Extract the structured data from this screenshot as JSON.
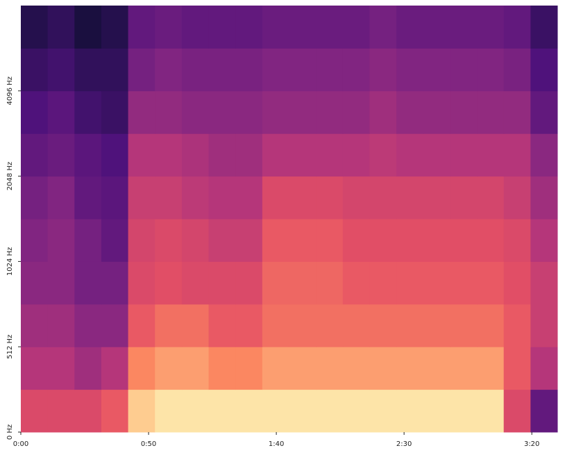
{
  "chart_data": {
    "type": "heatmap",
    "colormap": "magma",
    "yscale": "symlog",
    "linthresh": 512,
    "xlim": [
      0,
      210
    ],
    "ylim": [
      0,
      8192
    ],
    "xticks": [
      {
        "value": 0,
        "label": "0:00"
      },
      {
        "value": 50,
        "label": "0:50"
      },
      {
        "value": 100,
        "label": "1:40"
      },
      {
        "value": 150,
        "label": "2:30"
      },
      {
        "value": 200,
        "label": "3:20"
      }
    ],
    "yticks": [
      {
        "value": 0,
        "label": "0 Hz"
      },
      {
        "value": 512,
        "label": "512 Hz"
      },
      {
        "value": 1024,
        "label": "1024 Hz"
      },
      {
        "value": 2048,
        "label": "2048 Hz"
      },
      {
        "value": 4096,
        "label": "4096 Hz"
      }
    ],
    "x_bins": [
      0,
      10.5,
      21,
      31.5,
      42,
      52.5,
      63,
      73.5,
      84,
      94.5,
      105,
      115.5,
      126,
      136.5,
      147,
      157.5,
      168,
      178.5,
      189,
      199.5,
      210
    ],
    "y_bins": [
      0,
      256,
      512,
      724,
      1024,
      1448,
      2048,
      2896,
      4096,
      5793,
      8192
    ],
    "z": [
      [
        0.6,
        0.6,
        0.6,
        0.65,
        0.9,
        0.95,
        0.95,
        0.95,
        0.95,
        0.95,
        0.95,
        0.95,
        0.95,
        0.95,
        0.95,
        0.95,
        0.95,
        0.95,
        0.6,
        0.3
      ],
      [
        0.5,
        0.5,
        0.45,
        0.5,
        0.75,
        0.8,
        0.8,
        0.75,
        0.75,
        0.8,
        0.8,
        0.8,
        0.8,
        0.8,
        0.8,
        0.8,
        0.8,
        0.8,
        0.65,
        0.5
      ],
      [
        0.45,
        0.45,
        0.4,
        0.4,
        0.65,
        0.7,
        0.7,
        0.65,
        0.65,
        0.7,
        0.7,
        0.7,
        0.7,
        0.7,
        0.7,
        0.7,
        0.7,
        0.7,
        0.65,
        0.55
      ],
      [
        0.4,
        0.4,
        0.35,
        0.35,
        0.6,
        0.62,
        0.6,
        0.6,
        0.6,
        0.68,
        0.68,
        0.68,
        0.65,
        0.65,
        0.65,
        0.65,
        0.65,
        0.65,
        0.62,
        0.55
      ],
      [
        0.38,
        0.4,
        0.35,
        0.3,
        0.58,
        0.6,
        0.58,
        0.55,
        0.55,
        0.65,
        0.65,
        0.65,
        0.62,
        0.62,
        0.62,
        0.62,
        0.62,
        0.62,
        0.6,
        0.5
      ],
      [
        0.35,
        0.38,
        0.3,
        0.28,
        0.55,
        0.55,
        0.52,
        0.5,
        0.5,
        0.6,
        0.6,
        0.6,
        0.58,
        0.58,
        0.58,
        0.58,
        0.58,
        0.58,
        0.55,
        0.45
      ],
      [
        0.3,
        0.32,
        0.28,
        0.25,
        0.5,
        0.5,
        0.48,
        0.45,
        0.45,
        0.5,
        0.5,
        0.5,
        0.5,
        0.52,
        0.5,
        0.5,
        0.5,
        0.5,
        0.5,
        0.4
      ],
      [
        0.25,
        0.28,
        0.22,
        0.2,
        0.42,
        0.42,
        0.4,
        0.4,
        0.4,
        0.42,
        0.42,
        0.42,
        0.42,
        0.45,
        0.42,
        0.42,
        0.42,
        0.42,
        0.42,
        0.3
      ],
      [
        0.2,
        0.22,
        0.18,
        0.18,
        0.35,
        0.38,
        0.36,
        0.36,
        0.36,
        0.38,
        0.38,
        0.38,
        0.38,
        0.4,
        0.38,
        0.38,
        0.38,
        0.38,
        0.36,
        0.25
      ],
      [
        0.15,
        0.18,
        0.12,
        0.15,
        0.3,
        0.32,
        0.3,
        0.3,
        0.3,
        0.32,
        0.32,
        0.32,
        0.32,
        0.35,
        0.32,
        0.32,
        0.32,
        0.32,
        0.3,
        0.2
      ]
    ]
  }
}
